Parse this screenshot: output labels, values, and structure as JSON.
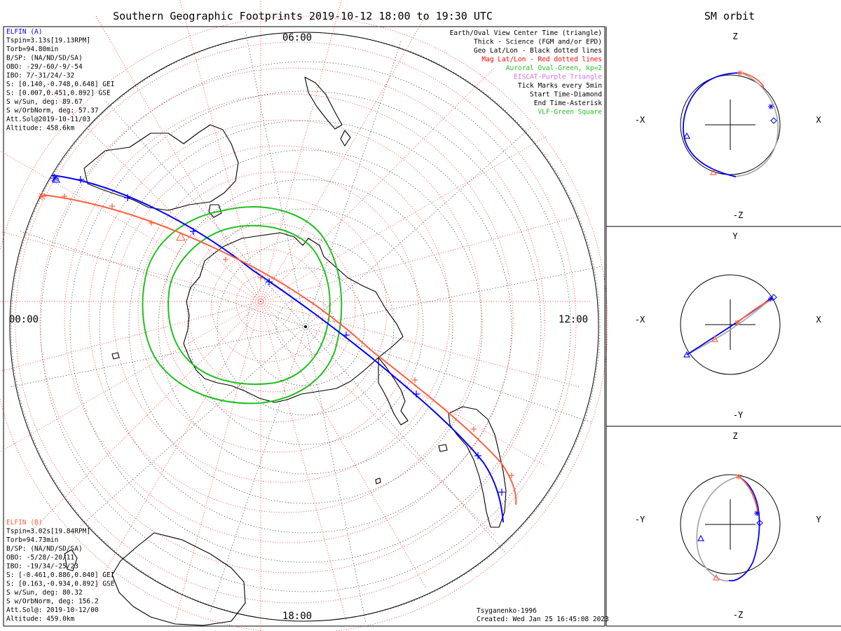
{
  "title": "Southern Geographic Footprints 2019-10-12 18:00 to 19:30 UTC",
  "right_title": "SM orbit",
  "hour_labels": {
    "top": "06:00",
    "right": "12:00",
    "bottom": "18:00",
    "left": "00:00"
  },
  "elfin_a": {
    "label": "ELFIN (A)",
    "color": "#0000ff",
    "lines": [
      "Tspin=3.13s[19.13RPM]",
      "Torb=94.80min",
      "B/SP: (NA/ND/SD/SA)",
      "OBO: -29/-60/-9/-54",
      "IBO: 7/-31/24/-32",
      "S: [0.140,-0.748,0.648] GEI",
      "S: [0.007,0.451,0.892] GSE",
      "S w/Sun, deg: 89.67",
      "S w/OrbNorm, deg: 57.37",
      "Att.Sol@2019-10-11/03",
      "Altitude: 458.6km"
    ]
  },
  "elfin_b": {
    "label": "ELFIN (B)",
    "color": "#ff6040",
    "lines": [
      "Tspin=3.02s[19.84RPM]",
      "Torb=94.73min",
      "B/SP: (NA/ND/SD/SA)",
      "OBO: -5/28/-20/11",
      "IBO: -19/34/-25/23",
      "S: [-0.461,0.886,0.040] GEI",
      "S: [0.163,-0.934,0.892] GSE",
      "S w/Sun, deg: 80.32",
      "S w/OrbNorm, deg: 156.2",
      "Att.Sol@: 2019-10-12/00",
      "Altitude: 459.0km"
    ]
  },
  "legend": [
    {
      "text": "Earth/Oval View Center Time (triangle)",
      "color": "#000000"
    },
    {
      "text": "Thick - Science (FGM and/or EPD)",
      "color": "#000000"
    },
    {
      "text": "Geo Lat/Lon - Black dotted lines",
      "color": "#000000"
    },
    {
      "text": "Mag Lat/Lon - Red dotted lines",
      "color": "#ff0000"
    },
    {
      "text": "Auroral Oval-Green, kp=2",
      "color": "#20c020"
    },
    {
      "text": "EISCAT-Purple Triangle",
      "color": "#d070e0"
    },
    {
      "text": "Tick Marks every 5min",
      "color": "#000000"
    },
    {
      "text": "Start Time-Diamond",
      "color": "#000000"
    },
    {
      "text": "End Time-Asterisk",
      "color": "#000000"
    },
    {
      "text": "VLF-Green Square",
      "color": "#20c020"
    }
  ],
  "footer": {
    "model": "Tsyganenko-1996",
    "created": "Created: Wed Jan 25 16:45:08 2023"
  },
  "orbit_panels": [
    {
      "up": "Z",
      "down": "-Z",
      "left": "-X",
      "right": "X"
    },
    {
      "up": "Y",
      "down": "-Y",
      "left": "-X",
      "right": "X"
    },
    {
      "up": "Z",
      "down": "-Z",
      "left": "-Y",
      "right": "Y"
    }
  ],
  "colors": {
    "elfin_a": "#0000ff",
    "elfin_b": "#ff6040",
    "auroral_oval": "#20c020",
    "mag_grid": "#ff0000",
    "geo_grid": "#000000"
  }
}
